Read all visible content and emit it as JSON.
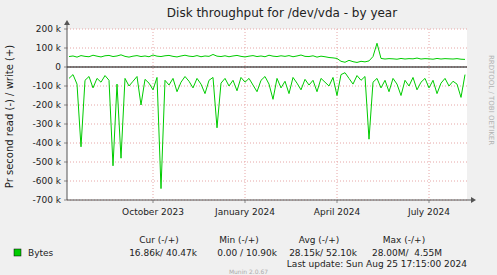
{
  "chart_data": {
    "type": "line",
    "title": "Disk throughput for /dev/vda - by year",
    "y_label": "Pr second read (-) / write (+)",
    "categories": [
      null,
      null,
      null,
      null,
      null,
      null,
      null,
      null,
      null,
      null,
      null,
      null,
      null,
      null,
      null,
      null,
      null,
      null,
      null,
      null,
      null,
      "October 2023",
      null,
      null,
      null,
      null,
      null,
      null,
      null,
      null,
      null,
      null,
      null,
      null,
      null,
      null,
      null,
      null,
      null,
      null,
      null,
      null,
      null,
      null,
      "January 2024",
      null,
      null,
      null,
      null,
      null,
      null,
      null,
      null,
      null,
      null,
      null,
      null,
      null,
      null,
      null,
      null,
      null,
      null,
      null,
      null,
      null,
      null,
      "April 2024",
      null,
      null,
      null,
      null,
      null,
      null,
      null,
      null,
      null,
      null,
      null,
      null,
      null,
      null,
      null,
      null,
      null,
      null,
      null,
      null,
      null,
      null,
      "July 2024",
      null,
      null,
      null,
      null,
      null,
      null,
      null,
      null,
      null
    ],
    "series": [
      {
        "name": "Bytes",
        "color": "#00cc00",
        "values": [
          55000,
          58000,
          52000,
          60000,
          56000,
          54000,
          62000,
          57000,
          53000,
          59000,
          61000,
          55000,
          58000,
          64000,
          56000,
          52000,
          57000,
          60000,
          55000,
          58000,
          54000,
          63000,
          57000,
          55000,
          59000,
          61000,
          56000,
          53000,
          58000,
          62000,
          57000,
          55000,
          60000,
          54000,
          58000,
          56000,
          66000,
          57000,
          55000,
          59000,
          54000,
          58000,
          61000,
          56000,
          53000,
          57000,
          60000,
          55000,
          58000,
          54000,
          62000,
          57000,
          55000,
          59000,
          56000,
          60000,
          54000,
          58000,
          63000,
          56000,
          55000,
          59000,
          52000,
          57000,
          54000,
          50000,
          48000,
          45000,
          30000,
          25000,
          35000,
          28000,
          24000,
          30000,
          27000,
          32000,
          55000,
          125000,
          45000,
          42000,
          44000,
          43000,
          41000,
          45000,
          42000,
          44000,
          43000,
          47000,
          42000,
          44000,
          43000,
          41000,
          45000,
          42000,
          44000,
          43000,
          42000,
          44000,
          41000,
          40000
        ]
      },
      {
        "color": "#00cc00",
        "values": [
          -60000,
          -40000,
          -90000,
          -420000,
          -70000,
          -50000,
          -110000,
          -60000,
          -80000,
          -45000,
          -70000,
          -520000,
          -90000,
          -480000,
          -60000,
          -100000,
          -75000,
          -50000,
          -200000,
          -65000,
          -85000,
          -120000,
          -55000,
          -640000,
          -70000,
          -95000,
          -60000,
          -130000,
          -80000,
          -50000,
          -75000,
          -110000,
          -60000,
          -90000,
          -140000,
          -70000,
          -55000,
          -320000,
          -85000,
          -60000,
          -100000,
          -70000,
          -125000,
          -55000,
          -80000,
          -60000,
          -95000,
          -130000,
          -70000,
          -50000,
          -90000,
          -170000,
          -60000,
          -110000,
          -75000,
          -140000,
          -55000,
          -85000,
          -120000,
          -65000,
          -95000,
          -70000,
          -130000,
          -60000,
          -80000,
          -100000,
          -55000,
          -150000,
          -40000,
          -30000,
          -60000,
          -90000,
          -45000,
          -70000,
          -50000,
          -380000,
          -80000,
          -60000,
          -110000,
          -70000,
          -130000,
          -60000,
          -90000,
          -150000,
          -70000,
          -100000,
          -55000,
          -120000,
          -80000,
          -60000,
          -110000,
          -70000,
          -140000,
          -85000,
          -60000,
          -100000,
          -75000,
          -90000,
          -160000,
          -40000
        ]
      }
    ],
    "ylim": [
      -700000,
      200000
    ],
    "yticks": [
      {
        "value": -700000,
        "label": "-700 k"
      },
      {
        "value": -600000,
        "label": "-600 k"
      },
      {
        "value": -500000,
        "label": "-500 k"
      },
      {
        "value": -400000,
        "label": "-400 k"
      },
      {
        "value": -300000,
        "label": "-300 k"
      },
      {
        "value": -200000,
        "label": "-200 k"
      },
      {
        "value": -100000,
        "label": "-100 k"
      },
      0,
      {
        "value": 100000,
        "label": "100 k"
      },
      {
        "value": 200000,
        "label": "200 k"
      }
    ],
    "grid": true,
    "legend": "bottom",
    "legend_table": {
      "headers": [
        "Cur (-/+)",
        "Min (-/+)",
        "Avg (-/+)",
        "Max (-/+)"
      ],
      "cells": [
        "16.86k/ 40.47k",
        "0.00 / 10.90k",
        "28.15k/ 52.10k",
        "28.00M/  4.55M"
      ]
    },
    "footer": "Last update: Sun Aug 25 17:15:00 2024",
    "credit": "Munin 2.0.67",
    "watermark": "RRDTOOL / TOBI OETIKER"
  }
}
